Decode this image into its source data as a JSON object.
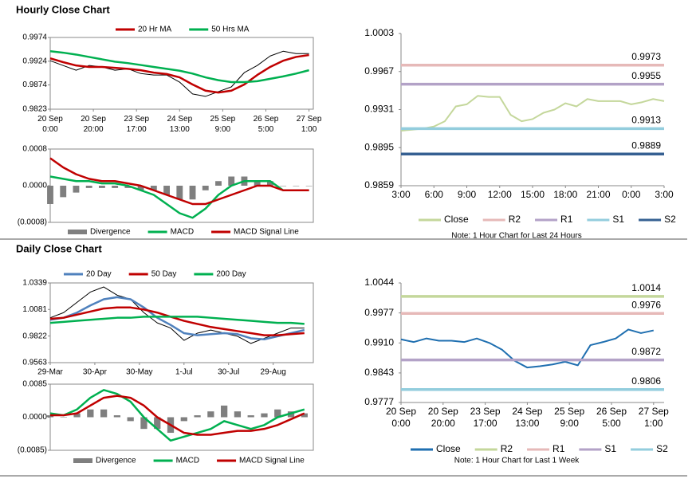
{
  "sections": [
    {
      "title": "Hourly Close Chart"
    },
    {
      "title": "Daily Close Chart"
    }
  ],
  "chart_data": [
    {
      "type": "line",
      "x": [
        0,
        6,
        12,
        18,
        24,
        30,
        36,
        42,
        48,
        54,
        60,
        66,
        72,
        78,
        84,
        90,
        96,
        102,
        108,
        114,
        120
      ],
      "values": [
        0.9925,
        0.9915,
        0.9905,
        0.9915,
        0.9912,
        0.9905,
        0.9908,
        0.9898,
        0.9895,
        0.9895,
        0.988,
        0.9855,
        0.985,
        0.986,
        0.987,
        0.99,
        0.9915,
        0.9935,
        0.9945,
        0.994,
        0.994
      ],
      "series": [
        {
          "name": "20 Hr MA",
          "color": "#c00000",
          "values": [
            0.993,
            0.9922,
            0.9915,
            0.9912,
            0.9912,
            0.991,
            0.9908,
            0.9905,
            0.99,
            0.9897,
            0.989,
            0.9875,
            0.9862,
            0.9858,
            0.9862,
            0.9875,
            0.9895,
            0.9912,
            0.9925,
            0.9933,
            0.9937
          ]
        },
        {
          "name": "50 Hrs MA",
          "color": "#00b050",
          "values": [
            0.9945,
            0.9942,
            0.9938,
            0.9933,
            0.9928,
            0.9923,
            0.992,
            0.9916,
            0.9912,
            0.9908,
            0.9904,
            0.9898,
            0.989,
            0.9884,
            0.988,
            0.988,
            0.9882,
            0.9887,
            0.9892,
            0.9898,
            0.9905
          ]
        }
      ],
      "xlim": [
        0,
        122
      ],
      "xticks": [
        {
          "value": 0,
          "label": "20 Sep 0:00"
        },
        {
          "value": 20,
          "label": "20 Sep 20:00"
        },
        {
          "value": 40,
          "label": "23 Sep 17:00"
        },
        {
          "value": 60,
          "label": "24 Sep 13:00"
        },
        {
          "value": 80,
          "label": "25 Sep 9:00"
        },
        {
          "value": 100,
          "label": "26 Sep 5:00"
        },
        {
          "value": 120,
          "label": "27 Sep 1:00"
        }
      ],
      "ylim": [
        0.9823,
        0.9974
      ],
      "yticks": [
        0.9974,
        0.9924,
        0.9874,
        0.9823
      ]
    },
    {
      "type": "line",
      "x": [
        0,
        6,
        12,
        18,
        24,
        30,
        36,
        42,
        48,
        54,
        60,
        66,
        72,
        78,
        84,
        90,
        96,
        102,
        108,
        114,
        120
      ],
      "series": [
        {
          "name": "Divergence",
          "type": "bar",
          "color": "#7f7f7f",
          "values": [
            -0.0004,
            -0.00025,
            -0.00015,
            -5e-05,
            -5e-05,
            -5e-05,
            -5e-05,
            -0.0001,
            -0.0001,
            -0.0002,
            -0.0003,
            -0.0003,
            -0.0001,
            0.0001,
            0.0002,
            0.0002,
            0.0001,
            0.0001,
            0,
            0,
            0
          ]
        },
        {
          "name": "MACD",
          "color": "#00b050",
          "values": [
            0.0002,
            0.00015,
            0.0001,
            0.0001,
            5e-05,
            5e-05,
            0,
            -0.0001,
            -0.0002,
            -0.0004,
            -0.0006,
            -0.0007,
            -0.0005,
            -0.0002,
            0,
            0.0001,
            0.0001,
            0.0001,
            -0.0001,
            -0.0001,
            -0.0001
          ]
        },
        {
          "name": "MACD Signal Line",
          "color": "#c00000",
          "values": [
            0.0006,
            0.0004,
            0.00025,
            0.00015,
            0.0001,
            0.0001,
            5e-05,
            0,
            -0.0001,
            -0.0002,
            -0.0003,
            -0.0004,
            -0.0004,
            -0.0003,
            -0.0002,
            -0.0001,
            0,
            0,
            -0.0001,
            -0.0001,
            -0.0001
          ]
        }
      ],
      "xlim": [
        0,
        122
      ],
      "ylim": [
        -0.0008,
        0.0008
      ],
      "yticks": [
        0.0008,
        {
          "value": 0,
          "label": "0.0000"
        },
        {
          "value": -0.0008,
          "label": "(0.0008)"
        }
      ]
    },
    {
      "type": "line",
      "x": [
        0,
        1,
        2,
        3,
        4,
        5,
        6,
        7,
        8,
        9,
        10,
        11,
        12,
        13,
        14,
        15,
        16,
        17,
        18,
        19,
        20,
        21,
        22,
        23,
        24
      ],
      "series": [
        {
          "name": "Close",
          "color": "#c4d79b",
          "values": [
            0.9911,
            0.9912,
            0.9913,
            0.9915,
            0.992,
            0.9934,
            0.9936,
            0.9944,
            0.9943,
            0.9943,
            0.9926,
            0.992,
            0.9922,
            0.9928,
            0.9931,
            0.9937,
            0.9934,
            0.9941,
            0.9939,
            0.9939,
            0.9939,
            0.9936,
            0.9938,
            0.9941,
            0.9939
          ]
        },
        {
          "name": "R2",
          "color": "#e6b9b8",
          "value": 0.9973
        },
        {
          "name": "R1",
          "color": "#b3a2c7",
          "value": 0.9955
        },
        {
          "name": "S1",
          "color": "#93cddd",
          "value": 0.9913
        },
        {
          "name": "S2",
          "color": "#366092",
          "value": 0.9889
        }
      ],
      "xlim": [
        0,
        24
      ],
      "xticks": [
        {
          "value": 0,
          "label": "3:00"
        },
        {
          "value": 3,
          "label": "6:00"
        },
        {
          "value": 6,
          "label": "9:00"
        },
        {
          "value": 9,
          "label": "12:00"
        },
        {
          "value": 12,
          "label": "15:00"
        },
        {
          "value": 15,
          "label": "18:00"
        },
        {
          "value": 18,
          "label": "21:00"
        },
        {
          "value": 21,
          "label": "0:00"
        },
        {
          "value": 24,
          "label": "3:00"
        }
      ],
      "ylim": [
        0.9859,
        1.0003
      ],
      "yticks": [
        1.0003,
        0.9967,
        0.9931,
        0.9895,
        0.9859
      ],
      "note": "Note: 1 Hour Chart for Last 24 Hours"
    },
    {
      "type": "line",
      "x": [
        0,
        6,
        12,
        18,
        24,
        30,
        36,
        42,
        48,
        54,
        60,
        66,
        72,
        78,
        84,
        90,
        96,
        102,
        108,
        114
      ],
      "values": [
        1.0,
        1.005,
        1.015,
        1.025,
        1.03,
        1.022,
        1.018,
        1.005,
        0.995,
        0.99,
        0.978,
        0.985,
        0.988,
        0.985,
        0.982,
        0.975,
        0.98,
        0.985,
        0.99,
        0.99
      ],
      "series": [
        {
          "name": "20 Day",
          "color": "#4f81bd",
          "values": [
            0.998,
            1.0,
            1.005,
            1.012,
            1.018,
            1.02,
            1.018,
            1.01,
            1.0,
            0.993,
            0.985,
            0.983,
            0.984,
            0.985,
            0.984,
            0.98,
            0.979,
            0.982,
            0.985,
            0.988
          ]
        },
        {
          "name": "50 Day",
          "color": "#c00000",
          "values": [
            0.999,
            1.0,
            1.003,
            1.006,
            1.009,
            1.01,
            1.01,
            1.008,
            1.005,
            1.001,
            0.997,
            0.994,
            0.991,
            0.989,
            0.987,
            0.985,
            0.983,
            0.983,
            0.984,
            0.985
          ]
        },
        {
          "name": "200 Day",
          "color": "#00b050",
          "values": [
            0.995,
            0.996,
            0.997,
            0.998,
            0.999,
            1.0,
            1.0,
            1.001,
            1.001,
            1.001,
            1.001,
            1.001,
            1.0,
            0.999,
            0.998,
            0.997,
            0.996,
            0.995,
            0.995,
            0.994
          ]
        }
      ],
      "xlim": [
        0,
        118
      ],
      "xticks": [
        {
          "value": 0,
          "label": "29-Mar"
        },
        {
          "value": 20,
          "label": "30-Apr"
        },
        {
          "value": 40,
          "label": "30-May"
        },
        {
          "value": 60,
          "label": "1-Jul"
        },
        {
          "value": 80,
          "label": "30-Jul"
        },
        {
          "value": 100,
          "label": "29-Aug"
        }
      ],
      "ylim": [
        0.9563,
        1.0339
      ],
      "yticks": [
        1.0339,
        1.0081,
        0.9822,
        0.9563
      ]
    },
    {
      "type": "line",
      "x": [
        0,
        6,
        12,
        18,
        24,
        30,
        36,
        42,
        48,
        54,
        60,
        66,
        72,
        78,
        84,
        90,
        96,
        102,
        108,
        114
      ],
      "series": [
        {
          "name": "Divergence",
          "type": "bar",
          "color": "#7f7f7f",
          "values": [
            0.0005,
            0,
            0.001,
            0.002,
            0.002,
            0.0005,
            -0.001,
            -0.003,
            -0.003,
            -0.004,
            -0.001,
            0.0005,
            0.0015,
            0.003,
            0.0015,
            0.0005,
            0.001,
            0.002,
            0.0015,
            0.001
          ]
        },
        {
          "name": "MACD",
          "color": "#00b050",
          "values": [
            0.001,
            0.0005,
            0.002,
            0.005,
            0.007,
            0.006,
            0.004,
            0,
            -0.003,
            -0.006,
            -0.005,
            -0.004,
            -0.003,
            -0.001,
            -0.002,
            -0.003,
            -0.002,
            0,
            0.001,
            0.002
          ]
        },
        {
          "name": "MACD Signal Line",
          "color": "#c00000",
          "values": [
            0.0005,
            0.0005,
            0.001,
            0.003,
            0.005,
            0.0055,
            0.005,
            0.003,
            0,
            -0.002,
            -0.004,
            -0.0045,
            -0.0045,
            -0.004,
            -0.0035,
            -0.0035,
            -0.003,
            -0.002,
            -0.0005,
            0.001
          ]
        }
      ],
      "xlim": [
        0,
        118
      ],
      "ylim": [
        -0.0085,
        0.0085
      ],
      "yticks": [
        0.0085,
        {
          "value": 0,
          "label": "0.0000"
        },
        {
          "value": -0.0085,
          "label": "(0.0085)"
        }
      ]
    },
    {
      "type": "line",
      "x": [
        0,
        6,
        12,
        18,
        24,
        30,
        36,
        42,
        48,
        54,
        60,
        66,
        72,
        78,
        84,
        90,
        96,
        102,
        108,
        114,
        120
      ],
      "series": [
        {
          "name": "Close",
          "color": "#1f6fb0",
          "values": [
            0.9918,
            0.9912,
            0.992,
            0.9915,
            0.9915,
            0.9912,
            0.992,
            0.991,
            0.9895,
            0.987,
            0.9855,
            0.9858,
            0.9862,
            0.9868,
            0.986,
            0.9905,
            0.9912,
            0.992,
            0.994,
            0.9932,
            0.9938
          ]
        },
        {
          "name": "R2",
          "color": "#c4d79b",
          "value": 1.0014
        },
        {
          "name": "R1",
          "color": "#e6b9b8",
          "value": 0.9976
        },
        {
          "name": "S1",
          "color": "#b3a2c7",
          "value": 0.9872
        },
        {
          "name": "S2",
          "color": "#93cddd",
          "value": 0.9806
        }
      ],
      "xlim": [
        0,
        125
      ],
      "xticks": [
        {
          "value": 0,
          "label": "20 Sep 0:00"
        },
        {
          "value": 20,
          "label": "20 Sep 20:00"
        },
        {
          "value": 40,
          "label": "23 Sep 17:00"
        },
        {
          "value": 60,
          "label": "24 Sep 13:00"
        },
        {
          "value": 80,
          "label": "25 Sep 9:00"
        },
        {
          "value": 100,
          "label": "26 Sep 5:00"
        },
        {
          "value": 120,
          "label": "27 Sep 1:00"
        }
      ],
      "ylim": [
        0.9777,
        1.0044
      ],
      "yticks": [
        1.0044,
        0.9977,
        {
          "value": 0.991,
          "label": "0.9910"
        },
        0.9843,
        0.9777
      ],
      "note": "Note: 1 Hour Chart for Last 1 Week"
    }
  ]
}
